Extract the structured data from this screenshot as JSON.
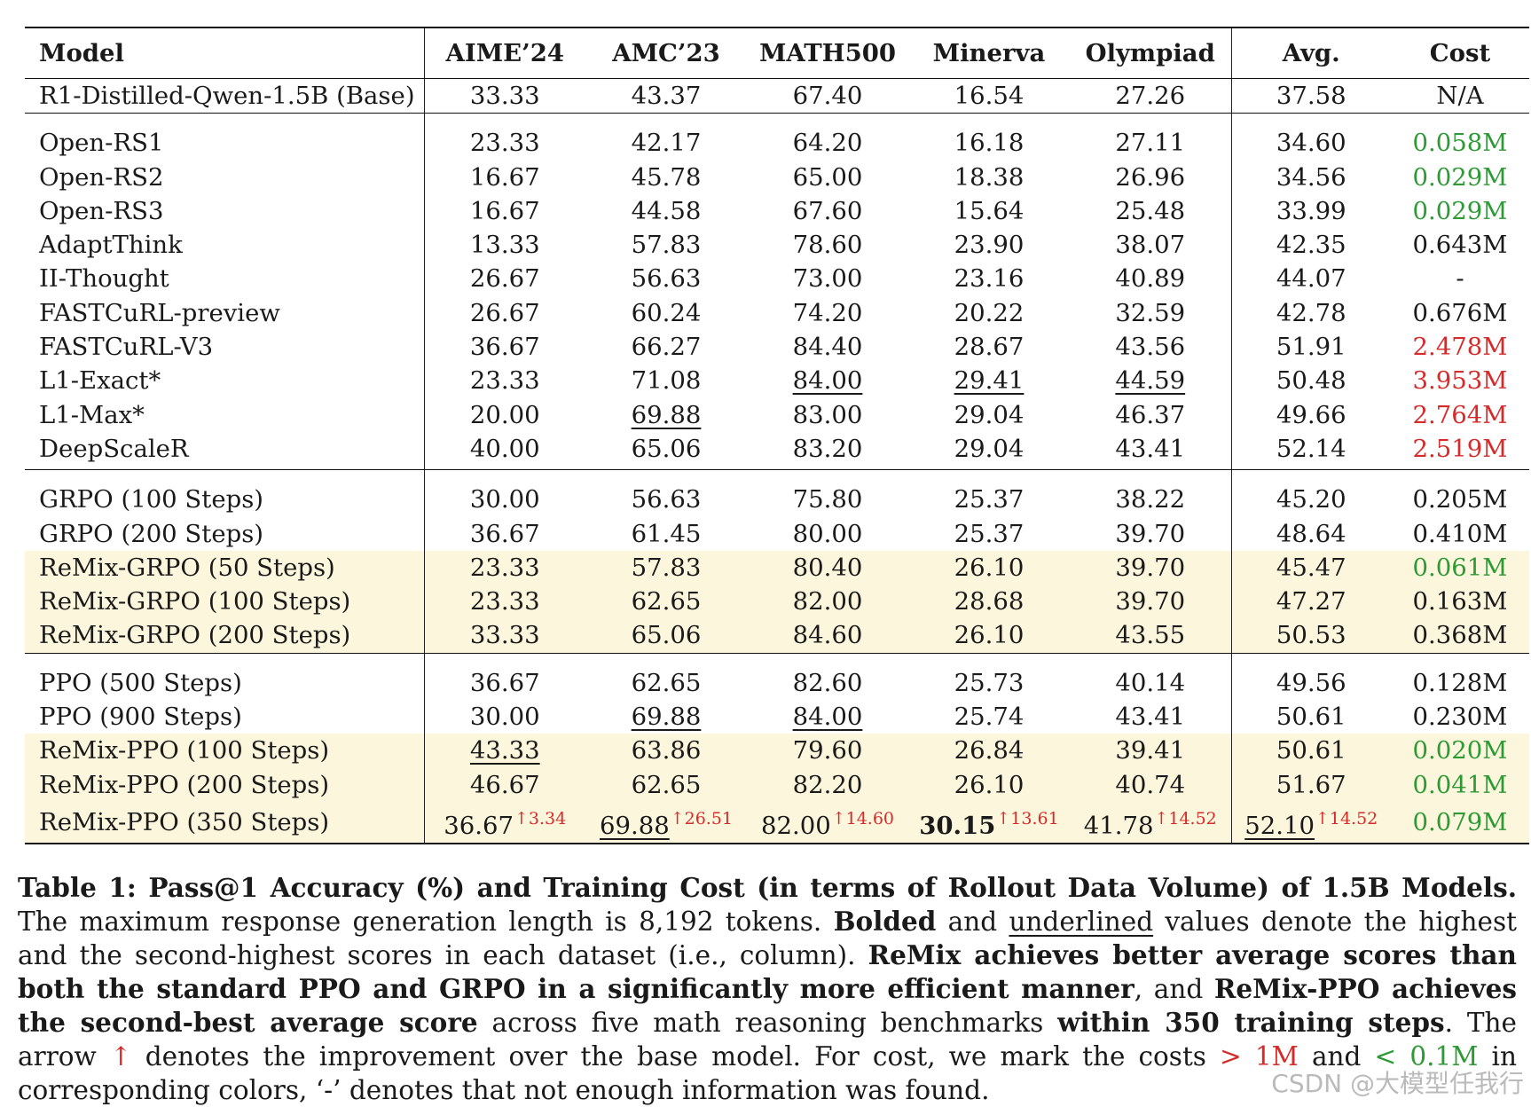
{
  "table": {
    "headers": [
      "Model",
      "AIME’24",
      "AMC’23",
      "MATH500",
      "Minerva",
      "Olympiad",
      "Avg.",
      "Cost"
    ],
    "base_row": {
      "model": "R1-Distilled-Qwen-1.5B (Base)",
      "values": [
        "33.33",
        "43.37",
        "67.40",
        "16.54",
        "27.26",
        "37.58",
        "N/A"
      ]
    },
    "baselines": [
      {
        "model": "Open-RS1",
        "values": [
          "23.33",
          "42.17",
          "64.20",
          "16.18",
          "27.11",
          "34.60",
          "0.058M"
        ]
      },
      {
        "model": "Open-RS2",
        "values": [
          "16.67",
          "45.78",
          "65.00",
          "18.38",
          "26.96",
          "34.56",
          "0.029M"
        ]
      },
      {
        "model": "Open-RS3",
        "values": [
          "16.67",
          "44.58",
          "67.60",
          "15.64",
          "25.48",
          "33.99",
          "0.029M"
        ]
      },
      {
        "model": "AdaptThink",
        "values": [
          "13.33",
          "57.83",
          "78.60",
          "23.90",
          "38.07",
          "42.35",
          "0.643M"
        ]
      },
      {
        "model": "II-Thought",
        "values": [
          "26.67",
          "56.63",
          "73.00",
          "23.16",
          "40.89",
          "44.07",
          "-"
        ]
      },
      {
        "model": "FASTCuRL-preview",
        "values": [
          "26.67",
          "60.24",
          "74.20",
          "20.22",
          "32.59",
          "42.78",
          "0.676M"
        ]
      },
      {
        "model": "FASTCuRL-V3",
        "values": [
          "36.67",
          "66.27",
          "84.40",
          "28.67",
          "43.56",
          "51.91",
          "2.478M"
        ]
      },
      {
        "model": "L1-Exact*",
        "values": [
          "23.33",
          "71.08",
          "84.00",
          "29.41",
          "44.59",
          "50.48",
          "3.953M"
        ]
      },
      {
        "model": "L1-Max*",
        "values": [
          "20.00",
          "69.88",
          "83.00",
          "29.04",
          "46.37",
          "49.66",
          "2.764M"
        ]
      },
      {
        "model": "DeepScaleR",
        "values": [
          "40.00",
          "65.06",
          "83.20",
          "29.04",
          "43.41",
          "52.14",
          "2.519M"
        ]
      }
    ],
    "grpo": [
      {
        "model": "GRPO (100 Steps)",
        "values": [
          "30.00",
          "56.63",
          "75.80",
          "25.37",
          "38.22",
          "45.20",
          "0.205M"
        ]
      },
      {
        "model": "GRPO (200 Steps)",
        "values": [
          "36.67",
          "61.45",
          "80.00",
          "25.37",
          "39.70",
          "48.64",
          "0.410M"
        ]
      },
      {
        "model": "ReMix-GRPO (50 Steps)",
        "values": [
          "23.33",
          "57.83",
          "80.40",
          "26.10",
          "39.70",
          "45.47",
          "0.061M"
        ]
      },
      {
        "model": "ReMix-GRPO (100 Steps)",
        "values": [
          "23.33",
          "62.65",
          "82.00",
          "28.68",
          "39.70",
          "47.27",
          "0.163M"
        ]
      },
      {
        "model": "ReMix-GRPO (200 Steps)",
        "values": [
          "33.33",
          "65.06",
          "84.60",
          "26.10",
          "43.55",
          "50.53",
          "0.368M"
        ]
      }
    ],
    "ppo": [
      {
        "model": "PPO (500 Steps)",
        "values": [
          "36.67",
          "62.65",
          "82.60",
          "25.73",
          "40.14",
          "49.56",
          "0.128M"
        ]
      },
      {
        "model": "PPO (900 Steps)",
        "values": [
          "30.00",
          "69.88",
          "84.00",
          "25.74",
          "43.41",
          "50.61",
          "0.230M"
        ]
      },
      {
        "model": "ReMix-PPO (100 Steps)",
        "values": [
          "43.33",
          "63.86",
          "79.60",
          "26.84",
          "39.41",
          "50.61",
          "0.020M"
        ]
      },
      {
        "model": "ReMix-PPO (200 Steps)",
        "values": [
          "46.67",
          "62.65",
          "82.20",
          "26.10",
          "40.74",
          "51.67",
          "0.041M"
        ]
      },
      {
        "model": "ReMix-PPO (350 Steps)",
        "values": [
          "36.67",
          "69.88",
          "82.00",
          "30.15",
          "41.78",
          "52.10",
          "0.079M"
        ],
        "deltas": [
          "↑3.34",
          "↑26.51",
          "↑14.60",
          "↑13.61",
          "↑14.52",
          "↑14.52"
        ]
      }
    ]
  },
  "caption": {
    "label": "Table 1: Pass@1 Accuracy (%) and Training Cost (in terms of Rollout Data Volume) of 1.5B Models.",
    "t1": " The maximum response generation length is 8,192 tokens. ",
    "bolded": "Bolded",
    "t2": " and ",
    "underlined": "underlined",
    "t3": " values denote the highest and the second-highest scores in each dataset (i.e., column). ",
    "b1": "ReMix achieves better average scores than both the standard PPO and GRPO in a significantly more efficient manner",
    "t4": ", and ",
    "b2": "ReMix-PPO achieves the second-best average score",
    "t5": " across five math reasoning benchmarks ",
    "b3": "within 350 training steps",
    "t6": ". The arrow ",
    "arrow": "↑",
    "t7": " denotes the improvement over the base model. For cost, we mark the costs ",
    "gt_red": "> 1M",
    "t8": " and ",
    "lt_green": "< 0.1M",
    "t9": " in corresponding colors, ‘-’ denotes that not enough information was found."
  },
  "watermark": "CSDN @大模型任我行",
  "colors": {
    "green": "#2e9a36",
    "red": "#d62b2b",
    "highlight": "#fcf6dc"
  }
}
